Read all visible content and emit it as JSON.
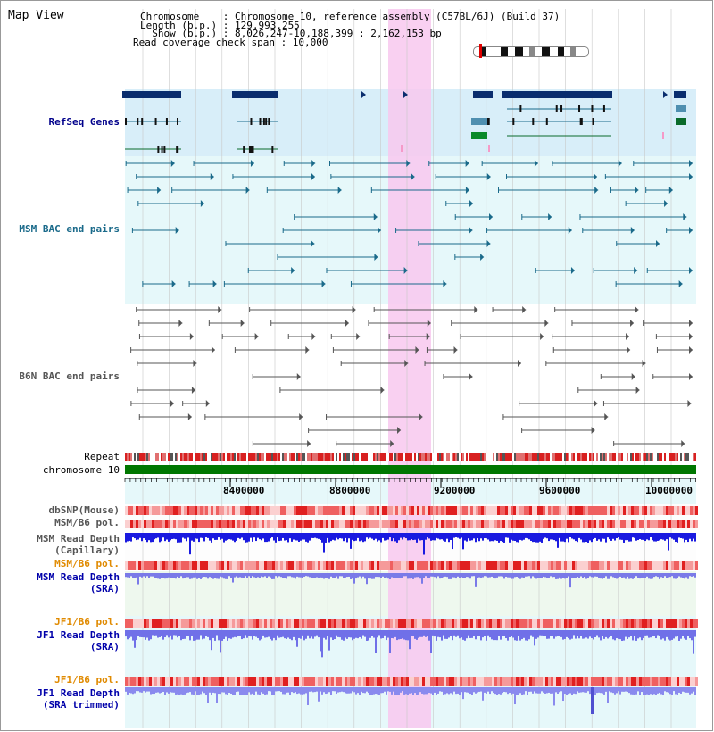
{
  "header": {
    "title": "Map View",
    "chromosome_line": "Chromosome    : Chromosome 10, reference assembly (C57BL/6J) (Build 37)",
    "length_line": "Length (b.p.) : 129,993,255",
    "show_line": "  Show (b.p.) : 8,026,247-10,188,399 : 2,162,153 bp",
    "coverage_line": "Read coverage check span : 10,000"
  },
  "axis": {
    "ticks": [
      "8400000",
      "8800000",
      "9200000",
      "9600000",
      "10000000"
    ]
  },
  "tracks": {
    "refseq": "RefSeq Genes",
    "msm_bac": "MSM BAC end pairs",
    "b6n_bac": "B6N BAC end pairs",
    "repeat": "Repeat",
    "chromosome": "chromosome 10",
    "dbsnp": "dbSNP(Mouse)",
    "msm_b6_pol_1": "MSM/B6 pol.",
    "msm_depth_cap_1": "MSM Read Depth",
    "msm_depth_cap_2": "(Capillary)",
    "msm_b6_pol_2": "MSM/B6 pol.",
    "msm_depth_sra_1": "MSM Read Depth",
    "msm_depth_sra_2": "(SRA)",
    "jf1_pol_1": "JF1/B6 pol.",
    "jf1_depth_sra_1": "JF1 Read Depth",
    "jf1_depth_sra_2": "(SRA)",
    "jf1_pol_2": "JF1/B6 pol.",
    "jf1_depth_trim_1": "JF1 Read Depth",
    "jf1_depth_trim_2": "(SRA trimmed)"
  },
  "colors": {
    "refseq_label": "#00008b",
    "msm_bac_label": "#1a6a8a",
    "b6n_label": "#555555",
    "depth_label": "#0000aa",
    "pol_label": "#e08a00",
    "highlight": "#f8c8ee",
    "chromosome_bar": "#007700"
  }
}
